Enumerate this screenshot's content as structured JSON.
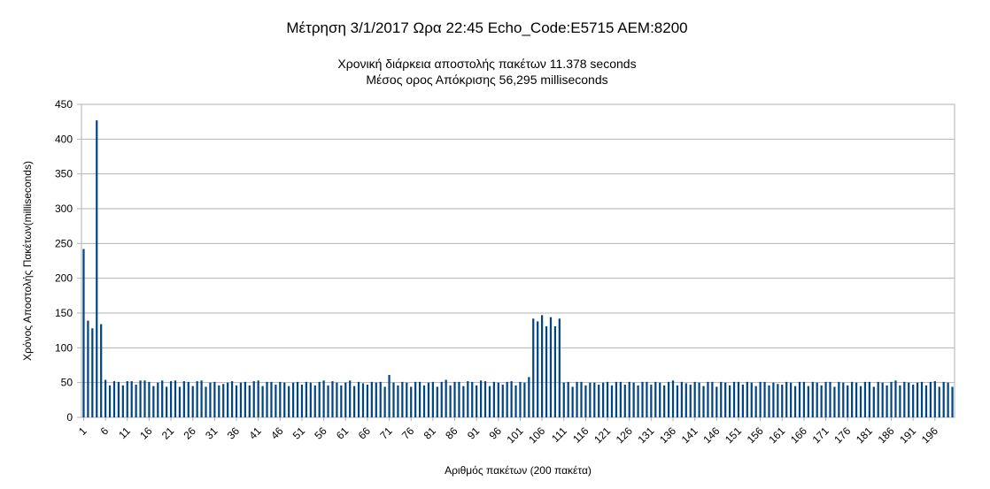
{
  "chart_data": {
    "type": "bar",
    "title": "Μέτρηση 3/1/2017 Ωρα 22:45 Echo_Code:E5715 AEM:8200",
    "subtitle_lines": [
      "Χρονική διάρκεια αποστολής πακέτων 11.378 seconds",
      "Μέσος ορος Απόκρισης 56,295 milliseconds"
    ],
    "xlabel": "Αριθμός πακέτων (200 πακέτα)",
    "ylabel": "Χρόνος Αποστολής Πακέτων(milliseconds)",
    "ylim": [
      0,
      450
    ],
    "yticks": [
      0,
      50,
      100,
      150,
      200,
      250,
      300,
      350,
      400,
      450
    ],
    "xtick_labels": [
      "1",
      "6",
      "11",
      "16",
      "21",
      "26",
      "31",
      "36",
      "41",
      "46",
      "51",
      "56",
      "61",
      "66",
      "71",
      "76",
      "81",
      "86",
      "91",
      "96",
      "101",
      "106",
      "111",
      "116",
      "121",
      "126",
      "131",
      "136",
      "141",
      "146",
      "151",
      "156",
      "161",
      "166",
      "171",
      "176",
      "181",
      "186",
      "191",
      "196"
    ],
    "grid": true,
    "bar_color": "#004586",
    "values": [
      242,
      139,
      128,
      427,
      134,
      54,
      46,
      52,
      51,
      46,
      52,
      52,
      47,
      53,
      53,
      51,
      45,
      50,
      53,
      44,
      52,
      53,
      44,
      52,
      51,
      45,
      52,
      53,
      44,
      50,
      51,
      46,
      48,
      50,
      52,
      46,
      50,
      51,
      46,
      52,
      53,
      45,
      51,
      51,
      47,
      51,
      50,
      45,
      50,
      51,
      47,
      51,
      50,
      46,
      51,
      53,
      46,
      52,
      50,
      46,
      50,
      53,
      45,
      51,
      49,
      47,
      51,
      50,
      51,
      44,
      61,
      50,
      46,
      51,
      50,
      44,
      51,
      51,
      46,
      50,
      51,
      44,
      51,
      54,
      46,
      51,
      51,
      45,
      52,
      51,
      46,
      53,
      52,
      45,
      51,
      50,
      47,
      51,
      52,
      46,
      51,
      50,
      58,
      142,
      138,
      147,
      131,
      144,
      131,
      142,
      50,
      51,
      44,
      51,
      51,
      46,
      50,
      50,
      47,
      50,
      51,
      46,
      51,
      51,
      47,
      51,
      50,
      46,
      51,
      51,
      47,
      51,
      50,
      46,
      51,
      53,
      46,
      51,
      49,
      47,
      51,
      50,
      45,
      51,
      51,
      44,
      51,
      50,
      46,
      51,
      51,
      47,
      51,
      50,
      45,
      51,
      51,
      46,
      50,
      48,
      47,
      51,
      50,
      45,
      51,
      51,
      45,
      51,
      50,
      46,
      51,
      51,
      44,
      51,
      50,
      46,
      51,
      50,
      45,
      51,
      51,
      44,
      51,
      50,
      46,
      51,
      53,
      46,
      51,
      50,
      47,
      50,
      51,
      46,
      51,
      52,
      44,
      51,
      50,
      44
    ]
  }
}
